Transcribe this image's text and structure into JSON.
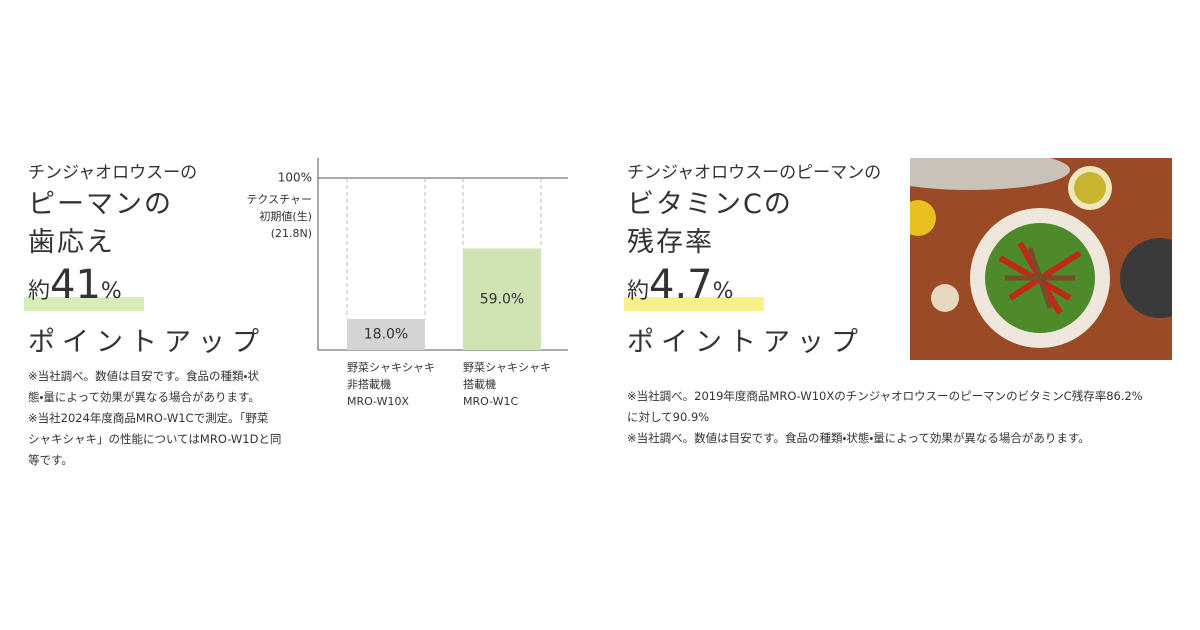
{
  "left": {
    "heading": [
      "チンジャオロウスーの",
      "ピーマンの",
      "歯応え"
    ],
    "prefix": "約",
    "number": "41",
    "unit": "%",
    "tagline": "ポイントアップ",
    "notes": [
      "※当社調べ。数値は目安です。食品の種類・状",
      "態・量によって効果が異なる場合があります。",
      "※当社2024年度商品MRO-W1Cで測定。「野菜",
      "シャキシャキ」の性能についてはMRO-W1Dと同",
      "等です。"
    ]
  },
  "chart_data": {
    "type": "bar",
    "y_label": [
      "テクスチャー",
      "初期値(生)",
      "(21.8N)"
    ],
    "categories": [
      [
        "野菜シャキシャキ",
        "非搭載機",
        "MRO-W10X"
      ],
      [
        "野菜シャキシャキ",
        "搭載機",
        "MRO-W1C"
      ]
    ],
    "values": [
      18.0,
      59.0
    ],
    "value_labels": [
      "18.0%",
      "59.0%"
    ],
    "colors": [
      "#d4d4d4",
      "#cfe4b2"
    ],
    "ylim": [
      0,
      100
    ],
    "yticks": [
      {
        "value": 100,
        "label": "100%"
      }
    ]
  },
  "right": {
    "heading": [
      "チンジャオロウスーのピーマンの",
      "ビタミンCの",
      "残存率"
    ],
    "prefix": "約",
    "number": "4.7",
    "unit": "%",
    "tagline": "ポイントアップ",
    "notes": [
      "※当社調べ。2019年度商品MRO-W10XのチンジャオロウスーのピーマンのビタミンC残存率86.2%",
      "に対して90.9%",
      "※当社調べ。数値は目安です。食品の種類・状態・量によって効果が異なる場合があります。"
    ]
  }
}
